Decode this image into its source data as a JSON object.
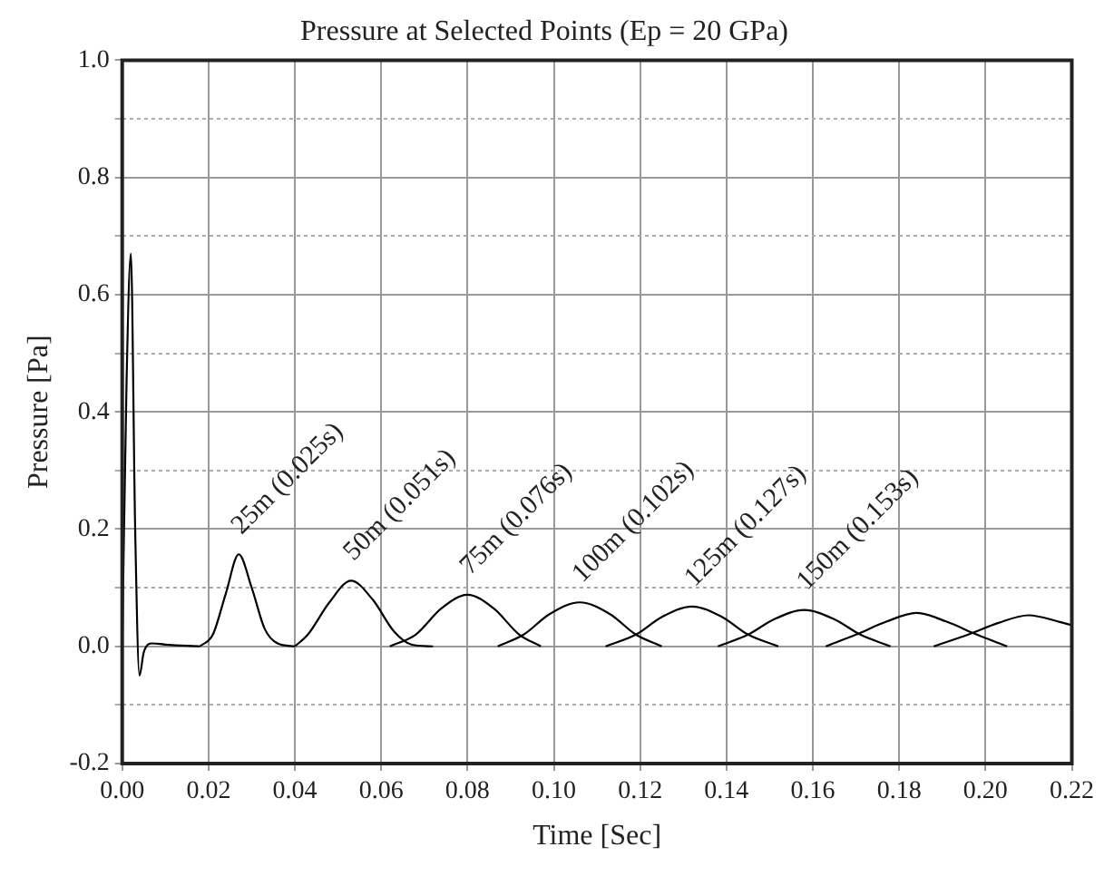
{
  "chart_data": {
    "type": "line",
    "title": "Pressure at Selected Points (Ep = 20 GPa)",
    "xlabel": "Time [Sec]",
    "ylabel": "Pressure [Pa]",
    "xlim": [
      0,
      0.22
    ],
    "xticks": [
      {
        "value": 0,
        "label": "0.00"
      },
      {
        "value": 0.02,
        "label": "0.02"
      },
      {
        "value": 0.04,
        "label": "0.04"
      },
      {
        "value": 0.06,
        "label": "0.06"
      },
      {
        "value": 0.08,
        "label": "0.08"
      },
      {
        "value": 0.1,
        "label": "0.10"
      },
      {
        "value": 0.12,
        "label": "0.12"
      },
      {
        "value": 0.14,
        "label": "0.14"
      },
      {
        "value": 0.16,
        "label": "0.16"
      },
      {
        "value": 0.18,
        "label": "0.18"
      },
      {
        "value": 0.2,
        "label": "0.20"
      },
      {
        "value": 0.22,
        "label": "0.22"
      }
    ],
    "ylim": [
      -0.2,
      1.0
    ],
    "yticks": [
      {
        "value": -0.2,
        "label": "-0.2"
      },
      {
        "value": -0.1,
        "label": null
      },
      {
        "value": 0,
        "label": "0.0"
      },
      {
        "value": 0.1,
        "label": null
      },
      {
        "value": 0.2,
        "label": "0.2"
      },
      {
        "value": 0.3,
        "label": null
      },
      {
        "value": 0.4,
        "label": "0.4"
      },
      {
        "value": 0.5,
        "label": null
      },
      {
        "value": 0.6,
        "label": "0.6"
      },
      {
        "value": 0.7,
        "label": null
      },
      {
        "value": 0.8,
        "label": "0.8"
      },
      {
        "value": 0.9,
        "label": null
      },
      {
        "value": 1.0,
        "label": "1.0"
      }
    ],
    "grid": true,
    "legend": false,
    "marker": "none",
    "line_style": "solid",
    "series": [
      {
        "color": "#000000",
        "x": [
          0,
          0.001,
          0.002,
          0.003,
          0.004,
          0.005,
          0.007,
          0.01,
          0.018
        ],
        "values": [
          0,
          0.45,
          0.67,
          0.2,
          -0.05,
          -0.01,
          0.005,
          0.003,
          0
        ]
      },
      {
        "color": "#000000",
        "x": [
          0.018,
          0.021,
          0.024,
          0.027,
          0.03,
          0.033,
          0.036,
          0.04
        ],
        "values": [
          0,
          0.02,
          0.09,
          0.157,
          0.1,
          0.03,
          0.005,
          0
        ]
      },
      {
        "color": "#000000",
        "x": [
          0.04,
          0.043,
          0.048,
          0.053,
          0.058,
          0.063,
          0.067,
          0.072
        ],
        "values": [
          0,
          0.02,
          0.075,
          0.112,
          0.08,
          0.025,
          0.003,
          0
        ]
      },
      {
        "color": "#000000",
        "x": [
          0.062,
          0.068,
          0.074,
          0.08,
          0.086,
          0.092,
          0.097
        ],
        "values": [
          0,
          0.02,
          0.065,
          0.088,
          0.065,
          0.02,
          0
        ]
      },
      {
        "color": "#000000",
        "x": [
          0.087,
          0.093,
          0.099,
          0.106,
          0.113,
          0.119,
          0.125
        ],
        "values": [
          0,
          0.02,
          0.055,
          0.075,
          0.055,
          0.02,
          0
        ]
      },
      {
        "color": "#000000",
        "x": [
          0.112,
          0.119,
          0.125,
          0.132,
          0.139,
          0.145,
          0.152
        ],
        "values": [
          0,
          0.02,
          0.05,
          0.068,
          0.05,
          0.02,
          0
        ]
      },
      {
        "color": "#000000",
        "x": [
          0.138,
          0.145,
          0.151,
          0.158,
          0.165,
          0.171,
          0.178
        ],
        "values": [
          0,
          0.02,
          0.046,
          0.062,
          0.046,
          0.02,
          0
        ]
      },
      {
        "color": "#000000",
        "x": [
          0.163,
          0.17,
          0.177,
          0.184,
          0.191,
          0.198,
          0.205
        ],
        "values": [
          0,
          0.02,
          0.042,
          0.057,
          0.042,
          0.02,
          0
        ]
      },
      {
        "color": "#000000",
        "x": [
          0.188,
          0.196,
          0.203,
          0.21,
          0.217,
          0.22
        ],
        "values": [
          0,
          0.02,
          0.04,
          0.053,
          0.042,
          0.036
        ]
      }
    ],
    "annotations": [
      {
        "text": "25m (0.025s)",
        "x": 0.027,
        "y": 0.157
      },
      {
        "text": "50m (0.051s)",
        "x": 0.053,
        "y": 0.112
      },
      {
        "text": "75m (0.076s)",
        "x": 0.08,
        "y": 0.088
      },
      {
        "text": "100m (0.102s)",
        "x": 0.106,
        "y": 0.075
      },
      {
        "text": "125m (0.127s)",
        "x": 0.132,
        "y": 0.068
      },
      {
        "text": "150m (0.153s)",
        "x": 0.158,
        "y": 0.062
      }
    ]
  }
}
